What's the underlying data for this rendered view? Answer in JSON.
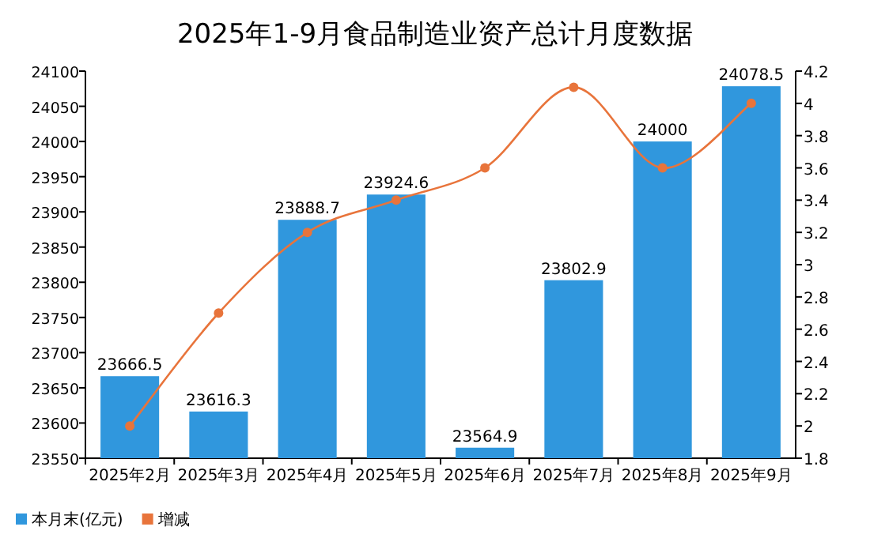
{
  "chart_data": {
    "type": "bar",
    "title": "2025年1-9月食品制造业资产总计月度数据",
    "categories": [
      "2025年2月",
      "2025年3月",
      "2025年4月",
      "2025年5月",
      "2025年6月",
      "2025年7月",
      "2025年8月",
      "2025年9月"
    ],
    "series": [
      {
        "name": "本月末(亿元)",
        "color": "#3097dd",
        "values": [
          23666.5,
          23616.3,
          23888.7,
          23924.6,
          23564.9,
          23802.9,
          24000,
          24078.5
        ],
        "value_labels": [
          "23666.5",
          "23616.3",
          "23888.7",
          "23924.6",
          "23564.9",
          "23802.9",
          "24000",
          "24078.5"
        ]
      },
      {
        "name": "增减",
        "type": "line",
        "axis": "y2",
        "color": "#e8743b",
        "values": [
          2.0,
          2.7,
          3.2,
          3.4,
          3.6,
          4.1,
          3.6,
          4.0
        ]
      }
    ],
    "ylim": [
      23550,
      24100
    ],
    "yticks": [
      23550,
      23600,
      23650,
      23700,
      23750,
      23800,
      23850,
      23900,
      23950,
      24000,
      24050,
      24100
    ],
    "y2lim": [
      1.8,
      4.2
    ],
    "y2ticks": [
      1.8,
      2,
      2.2,
      2.4,
      2.6,
      2.8,
      3,
      3.2,
      3.4,
      3.6,
      3.8,
      4,
      4.2
    ],
    "marker": "circle",
    "grid": false,
    "legend": "bottom left"
  }
}
